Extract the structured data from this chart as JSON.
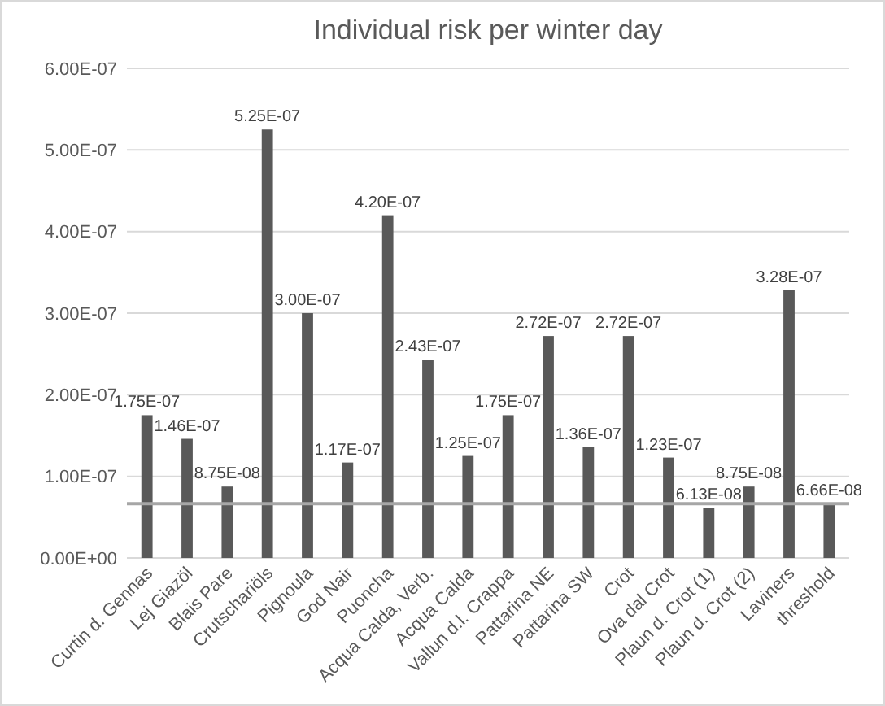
{
  "chart_data": {
    "type": "bar",
    "title": "Individual risk per winter day",
    "categories": [
      "Curtin d. Gennas",
      "Lej Giazöl",
      "Blais Pare",
      "Crutschariöls",
      "Pignoula",
      "God Nair",
      "Puoncha",
      "Acqua Calda, Verb.",
      "Acqua Calda",
      "Vallun d.l. Crappa",
      "Pattarina NE",
      "Pattarina SW",
      "Crot",
      "Ova dal Crot",
      "Plaun d. Crot (1)",
      "Plaun d. Crot (2)",
      "Laviners",
      "threshold"
    ],
    "values": [
      1.75e-07,
      1.46e-07,
      8.75e-08,
      5.25e-07,
      3e-07,
      1.17e-07,
      4.2e-07,
      2.43e-07,
      1.25e-07,
      1.75e-07,
      2.72e-07,
      1.36e-07,
      2.72e-07,
      1.23e-07,
      6.13e-08,
      8.75e-08,
      3.28e-07,
      6.66e-08
    ],
    "value_labels": [
      "1.75E-07",
      "1.46E-07",
      "8.75E-08",
      "5.25E-07",
      "3.00E-07",
      "1.17E-07",
      "4.20E-07",
      "2.43E-07",
      "1.25E-07",
      "1.75E-07",
      "2.72E-07",
      "1.36E-07",
      "2.72E-07",
      "1.23E-07",
      "6.13E-08",
      "8.75E-08",
      "3.28E-07",
      "6.66E-08"
    ],
    "color": "#595959",
    "ylim": [
      0,
      6e-07
    ],
    "yticks": [
      {
        "value": 0,
        "label": "0.00E+00"
      },
      {
        "value": 1e-07,
        "label": "1.00E-07"
      },
      {
        "value": 2e-07,
        "label": "2.00E-07"
      },
      {
        "value": 3e-07,
        "label": "3.00E-07"
      },
      {
        "value": 4e-07,
        "label": "4.00E-07"
      },
      {
        "value": 5e-07,
        "label": "5.00E-07"
      },
      {
        "value": 6e-07,
        "label": "6.00E-07"
      }
    ],
    "grid": "y",
    "ref_lines": [
      {
        "axis": "y",
        "value": 6.66e-08,
        "color": "#a6a6a6"
      }
    ]
  }
}
